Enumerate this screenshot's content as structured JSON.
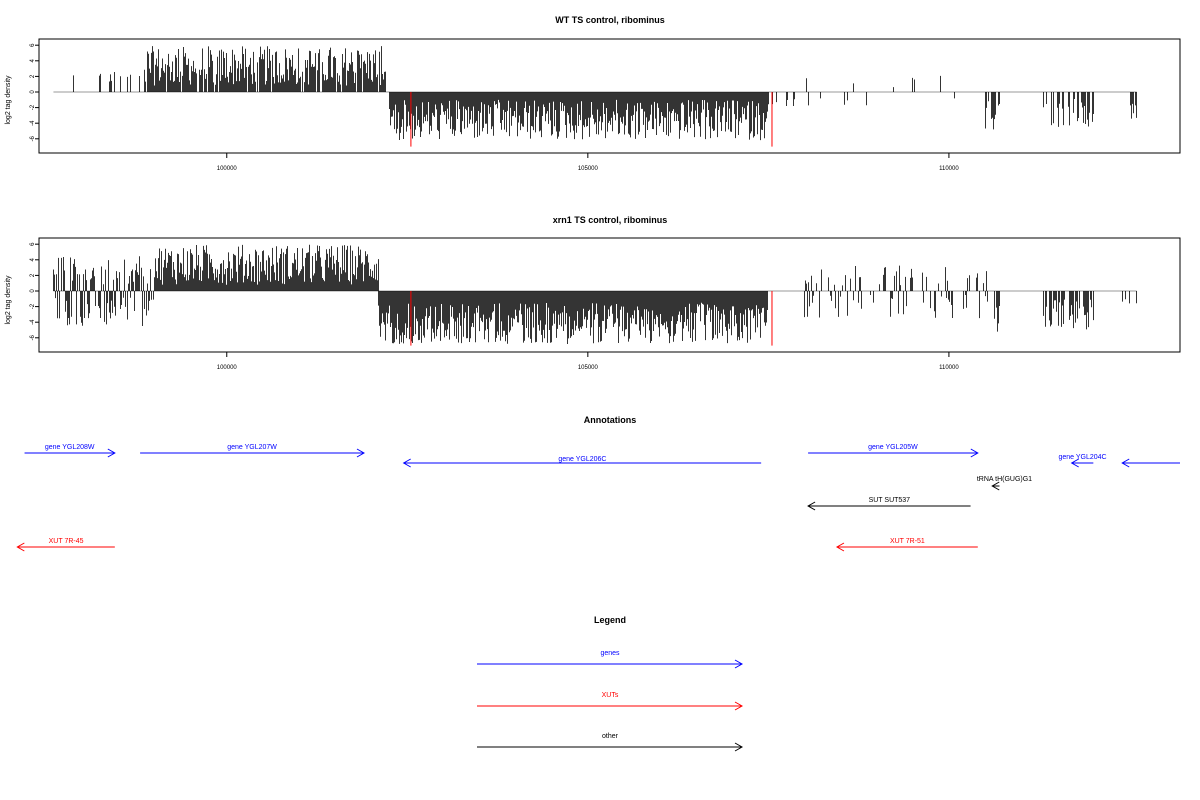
{
  "colors": {
    "bar": "#000000",
    "boundary": "#ff0000",
    "gene": "#0000ff",
    "xut": "#ff0000",
    "other": "#000000",
    "baseline": "#999999"
  },
  "chart_data": [
    {
      "type": "bar",
      "title": "WT TS control, ribominus",
      "ylabel": "log2 tag density",
      "ylim": [
        -7,
        6.5
      ],
      "xlim": [
        97400,
        113200
      ],
      "yticks": [
        "6",
        "4",
        "2",
        "0",
        "-2",
        "-4",
        "-6"
      ],
      "xticks": [
        "100000",
        "105000",
        "110000"
      ],
      "segments": [
        {
          "start": 97600,
          "end": 98200,
          "kind": "pos",
          "density": 0.12,
          "hmin": 1.0,
          "hmax": 3.4
        },
        {
          "start": 98200,
          "end": 98900,
          "kind": "pos",
          "density": 0.25,
          "hmin": 0.8,
          "hmax": 3.0
        },
        {
          "start": 98900,
          "end": 102200,
          "kind": "pos",
          "density": 0.9,
          "hmin": 0.8,
          "hmax": 5.9
        },
        {
          "start": 102250,
          "end": 107500,
          "kind": "neg",
          "density": 1.0,
          "hmin": 1.0,
          "hmax": 6.2
        },
        {
          "start": 107500,
          "end": 108000,
          "kind": "neg",
          "density": 0.15,
          "hmin": 0.8,
          "hmax": 2.0
        },
        {
          "start": 108000,
          "end": 110200,
          "kind": "mix",
          "density": 0.1,
          "hmin": 0.6,
          "hmax": 2.2
        },
        {
          "start": 110500,
          "end": 110700,
          "kind": "neg",
          "density": 0.5,
          "hmin": 1.0,
          "hmax": 5.2
        },
        {
          "start": 111300,
          "end": 112000,
          "kind": "neg",
          "density": 0.6,
          "hmin": 0.8,
          "hmax": 5.0
        },
        {
          "start": 112500,
          "end": 112600,
          "kind": "neg",
          "density": 0.6,
          "hmin": 1.5,
          "hmax": 3.5
        }
      ],
      "boundaries": [
        {
          "x": 102550,
          "y": -7
        },
        {
          "x": 107550,
          "y": -7
        }
      ]
    },
    {
      "type": "bar",
      "title": "xrn1 TS control, ribominus",
      "ylabel": "log2 tag density",
      "ylim": [
        -7,
        6.5
      ],
      "xlim": [
        97400,
        113200
      ],
      "yticks": [
        "6",
        "4",
        "2",
        "0",
        "-2",
        "-4",
        "-6"
      ],
      "xticks": [
        "100000",
        "105000",
        "110000"
      ],
      "segments": [
        {
          "start": 97600,
          "end": 99000,
          "kind": "mix",
          "density": 0.9,
          "hmin": 0.8,
          "hmax": 4.5
        },
        {
          "start": 99000,
          "end": 102100,
          "kind": "pos",
          "density": 1.0,
          "hmin": 0.8,
          "hmax": 6.0
        },
        {
          "start": 102100,
          "end": 107500,
          "kind": "neg",
          "density": 1.0,
          "hmin": 1.5,
          "hmax": 6.8
        },
        {
          "start": 108000,
          "end": 110600,
          "kind": "mix",
          "density": 0.4,
          "hmin": 0.5,
          "hmax": 3.5
        },
        {
          "start": 110600,
          "end": 110700,
          "kind": "neg",
          "density": 0.6,
          "hmin": 1.5,
          "hmax": 5.5
        },
        {
          "start": 111300,
          "end": 112000,
          "kind": "neg",
          "density": 0.7,
          "hmin": 1.0,
          "hmax": 5.0
        },
        {
          "start": 112400,
          "end": 112600,
          "kind": "neg",
          "density": 0.5,
          "hmin": 0.5,
          "hmax": 2.0
        }
      ],
      "boundaries": [
        {
          "x": 102550,
          "y": -7
        },
        {
          "x": 107550,
          "y": -7
        }
      ]
    }
  ],
  "annotations": {
    "title": "Annotations",
    "xlim": [
      97400,
      113200
    ],
    "features": [
      {
        "label": "gene YGL208W",
        "type": "gene",
        "start": 97200,
        "end": 98450,
        "strand": "+",
        "row": 0
      },
      {
        "label": "gene YGL207W",
        "type": "gene",
        "start": 98800,
        "end": 101900,
        "strand": "+",
        "row": 0
      },
      {
        "label": "gene YGL206C",
        "type": "gene",
        "start": 102450,
        "end": 107400,
        "strand": "-",
        "row": 1
      },
      {
        "label": "gene YGL205W",
        "type": "gene",
        "start": 108050,
        "end": 110400,
        "strand": "+",
        "row": 0
      },
      {
        "label": "gene YGL204C",
        "type": "gene",
        "start": 111700,
        "end": 112000,
        "strand": "-",
        "row": 1
      },
      {
        "label": "",
        "type": "gene",
        "start": 112400,
        "end": 113200,
        "strand": "-",
        "row": 1
      },
      {
        "label": "tRNA tH(GUG)G1",
        "type": "other",
        "start": 110600,
        "end": 110700,
        "strand": "-",
        "row": 2
      },
      {
        "label": "SUT SUT537",
        "type": "other",
        "start": 108050,
        "end": 110300,
        "strand": "-",
        "row": 3
      },
      {
        "label": "XUT 7R-45",
        "type": "xut",
        "start": 97100,
        "end": 98450,
        "strand": "-",
        "row": 4
      },
      {
        "label": "XUT 7R-51",
        "type": "xut",
        "start": 108450,
        "end": 110400,
        "strand": "-",
        "row": 4
      }
    ]
  },
  "legend": {
    "title": "Legend",
    "items": [
      {
        "label": "genes",
        "type": "gene"
      },
      {
        "label": "XUTs",
        "type": "xut"
      },
      {
        "label": "other",
        "type": "other"
      }
    ]
  }
}
